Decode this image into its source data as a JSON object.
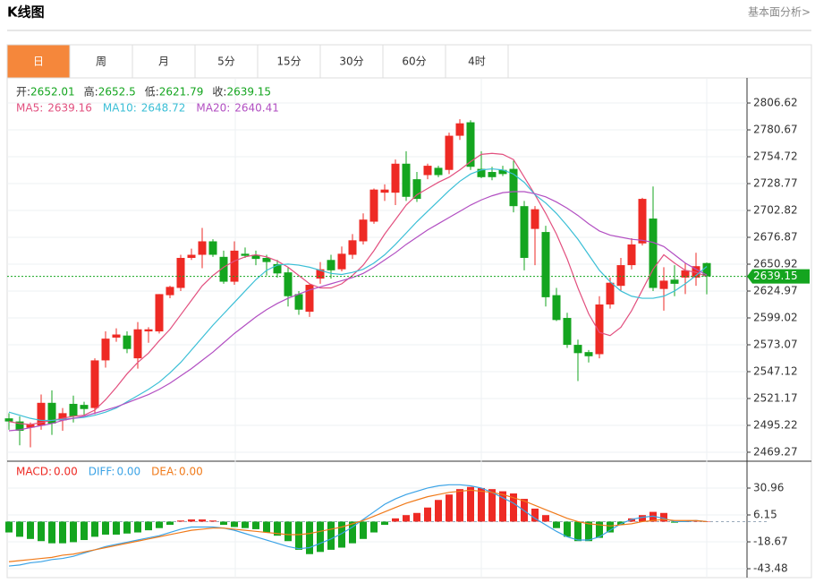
{
  "header": {
    "title": "K线图",
    "link": "基本面分析>"
  },
  "tabs": [
    "日",
    "周",
    "月",
    "5分",
    "15分",
    "30分",
    "60分",
    "4时"
  ],
  "active_tab": 0,
  "chart_data": [
    {
      "type": "candlestick",
      "up_color": "#ee2a24",
      "down_color": "#14a51f",
      "ohlc_labels": [
        "开:",
        "高:",
        "低:",
        "收:"
      ],
      "open": [
        2502,
        2499,
        2493,
        2495,
        2517,
        2500,
        2516,
        2515,
        2512,
        2558,
        2580,
        2582,
        2560,
        2586,
        2586,
        2621,
        2628,
        2657,
        2660,
        2673,
        2658,
        2634,
        2661,
        2660,
        2657,
        2651,
        2643,
        2622,
        2605,
        2637,
        2655,
        2646,
        2660,
        2673,
        2692,
        2720,
        2720,
        2748,
        2733,
        2737,
        2744,
        2742,
        2775,
        2788,
        2743,
        2740,
        2742,
        2743,
        2707,
        2685,
        2682,
        2621,
        2599,
        2573,
        2566,
        2564,
        2612,
        2630,
        2650,
        2671,
        2695,
        2627,
        2636,
        2638,
        2638,
        2652.01
      ],
      "high": [
        2507,
        2504,
        2498,
        2525,
        2529,
        2512,
        2524,
        2518,
        2560,
        2586,
        2589,
        2586,
        2595,
        2590,
        2622,
        2630,
        2660,
        2666,
        2686,
        2675,
        2664,
        2673,
        2667,
        2664,
        2660,
        2655,
        2648,
        2625,
        2632,
        2653,
        2660,
        2668,
        2680,
        2700,
        2724,
        2728,
        2752,
        2760,
        2740,
        2748,
        2746,
        2778,
        2791,
        2790,
        2760,
        2745,
        2746,
        2751,
        2712,
        2707,
        2688,
        2628,
        2604,
        2578,
        2568,
        2620,
        2638,
        2657,
        2676,
        2715,
        2726,
        2648,
        2650,
        2652,
        2662,
        2652.5
      ],
      "low": [
        2491,
        2476,
        2474,
        2491,
        2486,
        2490,
        2498,
        2505,
        2506,
        2551,
        2576,
        2565,
        2550,
        2575,
        2584,
        2618,
        2625,
        2655,
        2647,
        2658,
        2632,
        2631,
        2657,
        2650,
        2640,
        2638,
        2610,
        2602,
        2600,
        2632,
        2637,
        2644,
        2656,
        2670,
        2690,
        2712,
        2708,
        2712,
        2711,
        2733,
        2735,
        2738,
        2771,
        2742,
        2734,
        2732,
        2736,
        2701,
        2645,
        2650,
        2610,
        2596,
        2570,
        2538,
        2556,
        2560,
        2608,
        2625,
        2646,
        2669,
        2625,
        2606,
        2620,
        2622,
        2630,
        2621.79
      ],
      "close": [
        2499,
        2490,
        2496,
        2517,
        2497,
        2507,
        2504,
        2511,
        2558,
        2579,
        2583,
        2569,
        2588,
        2588,
        2622,
        2629,
        2657,
        2660,
        2673,
        2660,
        2634,
        2664,
        2659,
        2656,
        2653,
        2642,
        2620,
        2607,
        2631,
        2646,
        2645,
        2661,
        2674,
        2694,
        2723,
        2723,
        2748,
        2716,
        2714,
        2746,
        2737,
        2775,
        2787,
        2745,
        2735,
        2735,
        2738,
        2707,
        2657,
        2704,
        2619,
        2597,
        2573,
        2565,
        2562,
        2612,
        2633,
        2650,
        2670,
        2714,
        2628,
        2635,
        2632,
        2645,
        2649,
        2639.15
      ],
      "lines": [
        {
          "name": "MA5:",
          "color": "#e2507f",
          "values": [
            2499,
            2497,
            2496,
            2498,
            2500,
            2502,
            2504,
            2505,
            2510,
            2520,
            2532,
            2545,
            2556,
            2565,
            2577,
            2588,
            2602,
            2616,
            2630,
            2640,
            2648,
            2654,
            2658,
            2660,
            2658,
            2654,
            2648,
            2640,
            2632,
            2628,
            2628,
            2632,
            2640,
            2650,
            2664,
            2680,
            2694,
            2708,
            2718,
            2724,
            2730,
            2735,
            2742,
            2750,
            2757,
            2758,
            2757,
            2752,
            2735,
            2718,
            2700,
            2680,
            2656,
            2628,
            2603,
            2585,
            2582,
            2590,
            2606,
            2626,
            2646,
            2660,
            2652,
            2645,
            2643,
            2639.16
          ]
        },
        {
          "name": "MA10:",
          "color": "#3bbfd6",
          "values": [
            2508,
            2505,
            2502,
            2500,
            2500,
            2501,
            2502,
            2503,
            2505,
            2508,
            2512,
            2518,
            2524,
            2530,
            2537,
            2546,
            2556,
            2568,
            2580,
            2592,
            2603,
            2614,
            2625,
            2636,
            2645,
            2650,
            2651,
            2650,
            2648,
            2645,
            2642,
            2641,
            2643,
            2646,
            2652,
            2660,
            2670,
            2681,
            2692,
            2702,
            2712,
            2722,
            2731,
            2738,
            2742,
            2743,
            2742,
            2738,
            2730,
            2718,
            2710,
            2700,
            2688,
            2675,
            2660,
            2645,
            2634,
            2625,
            2620,
            2618,
            2618,
            2620,
            2625,
            2632,
            2640,
            2648.72
          ]
        },
        {
          "name": "MA20:",
          "color": "#b24fc2",
          "values": [
            2490,
            2491,
            2493,
            2495,
            2497,
            2500,
            2502,
            2504,
            2507,
            2510,
            2513,
            2517,
            2521,
            2525,
            2530,
            2536,
            2543,
            2550,
            2558,
            2566,
            2575,
            2584,
            2592,
            2600,
            2607,
            2613,
            2618,
            2622,
            2626,
            2629,
            2632,
            2635,
            2638,
            2642,
            2648,
            2655,
            2662,
            2670,
            2677,
            2684,
            2690,
            2696,
            2702,
            2708,
            2713,
            2717,
            2720,
            2721,
            2721,
            2719,
            2716,
            2711,
            2705,
            2698,
            2690,
            2683,
            2679,
            2677,
            2675,
            2674,
            2672,
            2668,
            2660,
            2652,
            2646,
            2640.41
          ]
        }
      ],
      "ylim": [
        2460.6,
        2830
      ],
      "yticks": [
        2806.62,
        2780.67,
        2754.72,
        2728.77,
        2702.82,
        2676.87,
        2650.92,
        2624.97,
        2599.02,
        2573.07,
        2547.12,
        2521.17,
        2495.22,
        2469.27
      ],
      "grid": true
    },
    {
      "type": "macd",
      "up_color": "#ee2a24",
      "down_color": "#14a51f",
      "legend": [
        {
          "label": "MACD:",
          "value_label": "0.00",
          "color": "#ee2a24"
        },
        {
          "label": "DIFF:",
          "value_label": "0.00",
          "color": "#3ba3e6"
        },
        {
          "label": "DEA:",
          "value_label": "0.00",
          "color": "#f07a1a"
        }
      ],
      "values": [
        -10,
        -14,
        -16,
        -18,
        -20,
        -20,
        -19,
        -17,
        -14,
        -12,
        -12,
        -11,
        -10,
        -8,
        -6,
        -3,
        1,
        2,
        2,
        1,
        -3,
        -5,
        -6,
        -7,
        -10,
        -13,
        -18,
        -26,
        -30,
        -28,
        -26,
        -24,
        -20,
        -16,
        -10,
        -3,
        3,
        6,
        8,
        13,
        20,
        25,
        30,
        32,
        31,
        30,
        28,
        26,
        21,
        12,
        6,
        -6,
        -14,
        -18,
        -18,
        -15,
        -10,
        -3,
        3,
        6,
        9,
        8,
        -1,
        0,
        1,
        0
      ],
      "lines": [
        {
          "name": "DIFF",
          "color": "#3ba3e6",
          "values": [
            -41,
            -40,
            -38,
            -37,
            -35,
            -34,
            -32,
            -29,
            -26,
            -23,
            -21,
            -19,
            -17,
            -15,
            -13,
            -10,
            -7,
            -5,
            -5,
            -5,
            -6,
            -8,
            -11,
            -14,
            -17,
            -20,
            -23,
            -25,
            -24,
            -20,
            -16,
            -11,
            -5,
            2,
            9,
            16,
            21,
            25,
            28,
            31,
            33,
            34,
            34,
            33,
            31,
            27,
            22,
            17,
            10,
            3,
            -3,
            -9,
            -14,
            -17,
            -17,
            -14,
            -8,
            -2,
            2,
            4,
            5,
            3,
            0,
            0,
            1,
            0
          ]
        },
        {
          "name": "DEA",
          "color": "#f07a1a",
          "values": [
            -37,
            -36,
            -35,
            -34,
            -33,
            -31,
            -30,
            -28,
            -26,
            -24,
            -22,
            -20,
            -18,
            -16,
            -14,
            -12,
            -10,
            -8,
            -7,
            -6,
            -6,
            -7,
            -8,
            -9,
            -10,
            -11,
            -12,
            -12,
            -11,
            -9,
            -7,
            -5,
            -2,
            1,
            5,
            9,
            13,
            17,
            20,
            23,
            25,
            27,
            28,
            29,
            28,
            27,
            25,
            22,
            19,
            15,
            11,
            7,
            3,
            0,
            -2,
            -3,
            -4,
            -3,
            -2,
            0,
            1,
            2,
            1,
            1,
            1,
            0
          ]
        }
      ],
      "ylim": [
        -51.7,
        54.1
      ],
      "yticks": [
        30.96,
        6.15,
        -18.67,
        -43.48
      ],
      "grid": true
    }
  ]
}
